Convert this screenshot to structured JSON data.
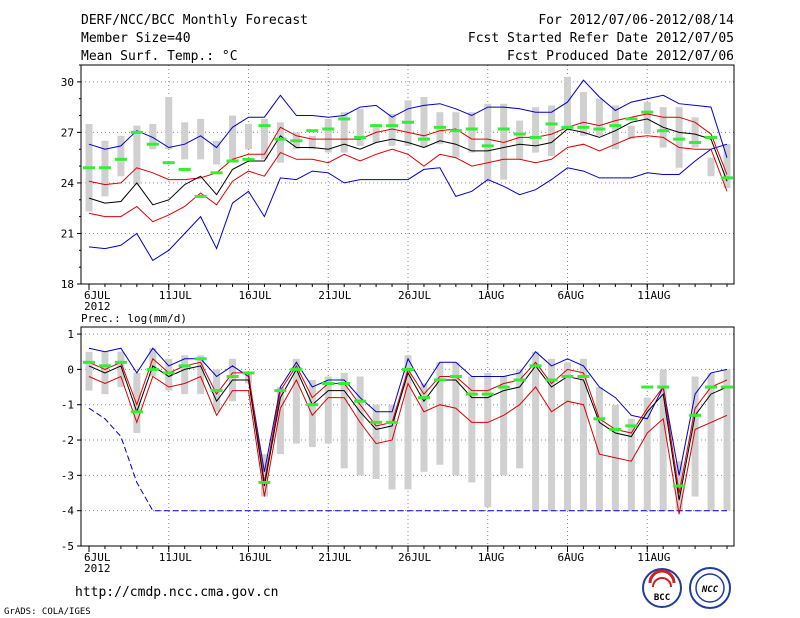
{
  "header": {
    "left": [
      "DERF/NCC/BCC Monthly Forecast",
      "Member Size=40",
      "Mean Surf. Temp.: °C"
    ],
    "right": [
      "For 2012/07/06-2012/08/14",
      "Fcst Started Refer Date 2012/07/05",
      "Fcst Produced Date 2012/07/06"
    ]
  },
  "footer": {
    "url": "http://cmdp.ncc.cma.gov.cn",
    "credit": "GrADS: COLA/IGES"
  },
  "logos": {
    "bcc": "BCC",
    "ncc": "NCC"
  },
  "colors": {
    "max_min": "#0000cc",
    "spread": "#dd0000",
    "mean": "#000000",
    "control": "#33ee33",
    "range_bar": "#d0d0d0",
    "grid": "#888888"
  },
  "chart_data": [
    {
      "type": "line",
      "title": "Mean Surf. Temp.: °C",
      "xlabel": "",
      "ylabel": "°C",
      "ylim": [
        18,
        31
      ],
      "yticks": [
        18,
        21,
        24,
        27,
        30
      ],
      "ytick_labels": [
        "18",
        "21",
        "24",
        "27",
        "30"
      ],
      "xlim": [
        0,
        40
      ],
      "xtick_days": [
        0,
        5,
        10,
        15,
        20,
        25,
        30,
        35
      ],
      "xtick_labels": [
        "6JUL",
        "11JUL",
        "16JUL",
        "21JUL",
        "26JUL",
        "1AUG",
        "6AUG",
        "11AUG"
      ],
      "year_label": "2012",
      "series": [
        {
          "name": "max",
          "values": [
            20.2,
            20.1,
            20.3,
            21.0,
            19.4,
            20.0,
            21.0,
            22.0,
            20.1,
            22.8,
            23.5,
            22.0,
            24.3,
            24.2,
            24.7,
            24.6,
            24.0,
            24.2,
            24.2,
            24.2,
            24.2,
            24.8,
            24.9,
            23.2,
            23.5,
            24.2,
            23.8,
            23.3,
            23.6,
            24.2,
            24.9,
            24.7,
            24.3,
            24.3,
            24.3,
            24.6,
            24.5,
            24.5,
            25.3,
            26.0,
            26.3
          ]
        },
        {
          "name": "upper",
          "values": [
            24.1,
            23.9,
            24.0,
            24.9,
            24.6,
            24.2,
            24.2,
            24.3,
            24.6,
            25.4,
            25.7,
            25.7,
            27.3,
            26.8,
            26.6,
            26.6,
            26.6,
            26.6,
            27.0,
            27.2,
            27.0,
            26.8,
            27.1,
            27.2,
            26.6,
            26.6,
            26.4,
            26.7,
            26.7,
            26.9,
            27.3,
            27.6,
            27.4,
            27.7,
            27.9,
            28.1,
            27.9,
            27.9,
            27.6,
            26.9,
            24.5
          ]
        },
        {
          "name": "mean",
          "values": [
            23.1,
            22.8,
            22.9,
            24.0,
            22.7,
            23.0,
            23.9,
            24.4,
            23.3,
            24.8,
            25.3,
            25.3,
            26.8,
            26.1,
            26.1,
            26.0,
            26.3,
            26.0,
            26.4,
            26.6,
            26.4,
            26.1,
            26.5,
            26.3,
            25.9,
            25.9,
            26.1,
            26.3,
            26.2,
            26.4,
            27.2,
            27.0,
            26.7,
            27.1,
            27.6,
            27.8,
            27.3,
            27.0,
            26.9,
            26.6,
            24.1
          ]
        },
        {
          "name": "lower",
          "values": [
            22.2,
            22.0,
            22.0,
            22.6,
            21.7,
            22.1,
            22.6,
            23.4,
            22.7,
            24.1,
            24.7,
            24.4,
            25.8,
            25.4,
            25.4,
            25.2,
            25.7,
            25.3,
            25.7,
            26.0,
            25.7,
            25.0,
            25.7,
            25.5,
            25.0,
            25.2,
            25.4,
            25.4,
            25.2,
            25.4,
            26.1,
            26.3,
            25.9,
            26.3,
            26.7,
            26.8,
            26.7,
            26.1,
            26.0,
            26.0,
            23.5
          ]
        },
        {
          "name": "min",
          "values": [
            26.3,
            26.0,
            26.2,
            27.1,
            26.7,
            26.1,
            26.3,
            26.8,
            26.1,
            27.3,
            27.9,
            27.9,
            29.2,
            28.0,
            28.0,
            27.9,
            28.0,
            28.5,
            28.6,
            27.9,
            28.4,
            28.6,
            28.7,
            28.4,
            28.0,
            28.5,
            28.5,
            28.4,
            28.2,
            28.2,
            28.8,
            30.1,
            29.1,
            28.3,
            28.8,
            29.0,
            29.2,
            28.7,
            28.6,
            28.5,
            25.5
          ]
        },
        {
          "name": "control",
          "values": [
            24.9,
            24.9,
            25.4,
            27.0,
            26.3,
            25.2,
            24.8,
            23.2,
            24.6,
            25.3,
            25.4,
            27.4,
            26.6,
            26.5,
            27.1,
            27.2,
            27.8,
            26.7,
            27.4,
            27.4,
            27.6,
            26.6,
            27.3,
            27.1,
            27.2,
            26.2,
            27.2,
            26.9,
            26.7,
            27.5,
            27.3,
            27.3,
            27.2,
            27.4,
            27.8,
            28.2,
            27.1,
            26.6,
            26.4,
            26.7,
            24.3
          ]
        },
        {
          "name": "range_high",
          "values": [
            27.5,
            26.5,
            26.8,
            27.4,
            27.5,
            29.1,
            27.6,
            27.8,
            26.5,
            28.0,
            27.5,
            27.8,
            27.6,
            27.0,
            26.8,
            27.8,
            28.2,
            28.4,
            27.3,
            28.1,
            28.9,
            29.1,
            28.2,
            28.2,
            28.2,
            28.7,
            28.7,
            27.7,
            28.5,
            28.6,
            30.3,
            29.4,
            29.0,
            28.6,
            27.4,
            28.8,
            28.5,
            28.5,
            27.9,
            25.5,
            26.3
          ]
        },
        {
          "name": "range_low",
          "values": [
            22.3,
            23.2,
            24.4,
            23.9,
            26.0,
            26.0,
            25.4,
            25.4,
            25.1,
            25.3,
            26.0,
            25.4,
            25.2,
            26.0,
            26.0,
            25.8,
            25.8,
            26.2,
            26.4,
            26.2,
            26.2,
            26.1,
            26.3,
            25.5,
            25.8,
            24.1,
            24.2,
            25.4,
            25.8,
            25.6,
            27.1,
            26.8,
            26.8,
            26.0,
            26.6,
            26.9,
            26.1,
            24.9,
            26.1,
            24.4,
            23.7
          ]
        }
      ]
    },
    {
      "type": "line",
      "title": "Prec.: log(mm/d)",
      "xlabel": "",
      "ylabel": "log(mm/d)",
      "ylim": [
        -5,
        1.2
      ],
      "yticks": [
        -5,
        -4,
        -3,
        -2,
        -1,
        0,
        1
      ],
      "ytick_labels": [
        "-5",
        "-4",
        "-3",
        "-2",
        "-1",
        "0",
        "1"
      ],
      "xlim": [
        0,
        40
      ],
      "xtick_days": [
        0,
        5,
        10,
        15,
        20,
        25,
        30,
        35
      ],
      "xtick_labels": [
        "6JUL",
        "11JUL",
        "16JUL",
        "21JUL",
        "26JUL",
        "1AUG",
        "6AUG",
        "11AUG"
      ],
      "year_label": "2012",
      "series": [
        {
          "name": "max",
          "values": [
            0.6,
            0.5,
            0.6,
            -0.1,
            0.6,
            0.1,
            0.3,
            0.3,
            -0.2,
            0.1,
            -0.2,
            -2.9,
            -0.5,
            0.2,
            -0.5,
            -0.3,
            -0.3,
            -0.8,
            -1.2,
            -1.2,
            0.3,
            -0.5,
            0.2,
            0.2,
            -0.2,
            -0.2,
            -0.2,
            -0.1,
            0.5,
            0.1,
            0.3,
            0.1,
            -0.5,
            -0.8,
            -1.3,
            -1.4,
            -0.5,
            -3.0,
            -0.7,
            -0.1,
            0.0
          ]
        },
        {
          "name": "upper",
          "values": [
            0.2,
            0.0,
            0.2,
            -1.0,
            0.3,
            -0.1,
            0.1,
            0.2,
            -0.7,
            -0.1,
            -0.1,
            -3.2,
            -0.6,
            0.1,
            -0.8,
            -0.4,
            -0.4,
            -1.0,
            -1.6,
            -1.5,
            0.0,
            -0.7,
            -0.2,
            -0.2,
            -0.6,
            -0.6,
            -0.4,
            -0.3,
            0.2,
            -0.4,
            0.0,
            -0.1,
            -1.4,
            -1.7,
            -1.8,
            -1.1,
            -0.5,
            -3.5,
            -1.1,
            -0.5,
            -0.3
          ]
        },
        {
          "name": "mean",
          "values": [
            0.1,
            -0.1,
            0.1,
            -1.2,
            0.1,
            -0.2,
            0.0,
            0.1,
            -0.9,
            -0.3,
            -0.3,
            -3.3,
            -0.8,
            0.0,
            -1.0,
            -0.6,
            -0.6,
            -1.2,
            -1.7,
            -1.6,
            -0.1,
            -0.9,
            -0.3,
            -0.3,
            -0.8,
            -0.8,
            -0.6,
            -0.5,
            0.1,
            -0.5,
            -0.2,
            -0.3,
            -1.5,
            -1.8,
            -1.9,
            -1.2,
            -0.7,
            -3.7,
            -1.3,
            -0.7,
            -0.5
          ]
        },
        {
          "name": "lower",
          "values": [
            -0.2,
            -0.4,
            -0.2,
            -1.5,
            -0.2,
            -0.5,
            -0.4,
            -0.2,
            -1.3,
            -0.6,
            -0.6,
            -3.6,
            -1.1,
            -0.3,
            -1.3,
            -0.8,
            -0.8,
            -1.5,
            -2.1,
            -2.0,
            -0.4,
            -1.2,
            -1.0,
            -1.1,
            -1.5,
            -1.5,
            -1.3,
            -1.0,
            -0.5,
            -1.2,
            -0.9,
            -1.0,
            -2.4,
            -2.5,
            -2.6,
            -1.8,
            -1.4,
            -4.1,
            -1.7,
            -1.5,
            -1.3
          ]
        },
        {
          "name": "min",
          "values": [
            -1.1,
            -1.4,
            -1.9,
            -3.2,
            -4.0,
            -4.0,
            -4.0,
            -4.0,
            -4.0,
            -4.0,
            -4.0,
            -4.0,
            -4.0,
            -4.0,
            -4.0,
            -4.0,
            -4.0,
            -4.0,
            -4.0,
            -4.0,
            -4.0,
            -4.0,
            -4.0,
            -4.0,
            -4.0,
            -4.0,
            -4.0,
            -4.0,
            -4.0,
            -4.0,
            -4.0,
            -4.0,
            -4.0,
            -4.0,
            -4.0,
            -4.0,
            -4.0,
            -4.0,
            -4.0,
            -4.0,
            -4.0
          ]
        },
        {
          "name": "control",
          "values": [
            0.2,
            0.1,
            0.2,
            -1.2,
            0.0,
            -0.1,
            0.1,
            0.3,
            -0.6,
            -0.2,
            -0.1,
            -3.2,
            -0.6,
            0.0,
            -1.0,
            -0.4,
            -0.4,
            -0.9,
            -1.5,
            -1.5,
            0.0,
            -0.8,
            -0.3,
            -0.2,
            -0.7,
            -0.7,
            -0.5,
            -0.3,
            0.1,
            -0.3,
            -0.2,
            -0.2,
            -1.4,
            -1.7,
            -1.6,
            -0.5,
            -0.5,
            -3.3,
            -1.3,
            -0.5,
            -0.5
          ]
        },
        {
          "name": "range_high",
          "values": [
            0.5,
            0.5,
            0.5,
            -0.1,
            0.6,
            0.3,
            0.4,
            0.4,
            0.0,
            0.3,
            -0.1,
            -2.4,
            -0.5,
            0.3,
            -0.3,
            -0.2,
            -0.1,
            -0.2,
            -1.0,
            -1.0,
            0.4,
            -0.4,
            0.2,
            0.2,
            -0.2,
            -0.1,
            -0.2,
            0.0,
            0.5,
            0.3,
            0.2,
            0.3,
            -0.5,
            -1.0,
            -1.4,
            -0.8,
            0.0,
            -2.6,
            -0.2,
            -0.1,
            0.0
          ]
        },
        {
          "name": "range_low",
          "values": [
            -0.6,
            -0.7,
            -0.5,
            -1.8,
            -0.2,
            -0.6,
            -0.7,
            -0.7,
            -1.2,
            -0.9,
            -0.4,
            -3.6,
            -2.4,
            -2.1,
            -2.2,
            -2.1,
            -2.8,
            -3.0,
            -3.1,
            -3.4,
            -3.4,
            -2.9,
            -2.7,
            -3.0,
            -3.2,
            -3.9,
            -3.0,
            -2.8,
            -4.0,
            -4.0,
            -4.0,
            -4.0,
            -4.0,
            -4.0,
            -4.0,
            -4.0,
            -4.0,
            -4.0,
            -3.6,
            -4.0,
            -4.0
          ]
        }
      ]
    }
  ]
}
